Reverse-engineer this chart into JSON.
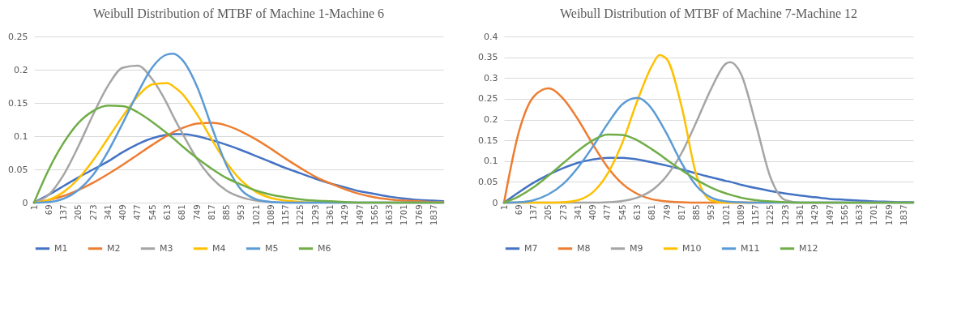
{
  "chart_data": [
    {
      "type": "line",
      "title": "Weibull Distribution of MTBF of Machine 1-Machine 6",
      "x": [
        1,
        69,
        137,
        205,
        273,
        341,
        409,
        477,
        545,
        613,
        640,
        681,
        749,
        817,
        885,
        953,
        1021,
        1089,
        1157,
        1225,
        1293,
        1361,
        1429,
        1497,
        1565,
        1633,
        1701,
        1769,
        1837,
        1880
      ],
      "series": [
        {
          "name": "M1",
          "color": "#4472c4",
          "values": [
            0,
            0.012,
            0.025,
            0.038,
            0.05,
            0.062,
            0.076,
            0.088,
            0.097,
            0.102,
            0.103,
            0.103,
            0.1,
            0.094,
            0.087,
            0.079,
            0.07,
            0.061,
            0.052,
            0.044,
            0.036,
            0.029,
            0.023,
            0.017,
            0.013,
            0.009,
            0.006,
            0.004,
            0.003,
            0.002
          ]
        },
        {
          "name": "M2",
          "color": "#ed7d31",
          "values": [
            0,
            0.004,
            0.01,
            0.019,
            0.03,
            0.043,
            0.057,
            0.072,
            0.087,
            0.101,
            0.106,
            0.112,
            0.119,
            0.12,
            0.116,
            0.107,
            0.095,
            0.081,
            0.066,
            0.052,
            0.039,
            0.029,
            0.02,
            0.013,
            0.008,
            0.005,
            0.003,
            0.002,
            0.001,
            0.001
          ]
        },
        {
          "name": "M3",
          "color": "#a5a5a5",
          "values": [
            0,
            0.012,
            0.042,
            0.085,
            0.133,
            0.176,
            0.203,
            0.206,
            0.185,
            0.148,
            0.13,
            0.105,
            0.066,
            0.037,
            0.018,
            0.008,
            0.003,
            0.001,
            0,
            0,
            0,
            0,
            0,
            0,
            0,
            0,
            0,
            0,
            0,
            0
          ]
        },
        {
          "name": "M4",
          "color": "#ffc000",
          "values": [
            0,
            0.004,
            0.016,
            0.036,
            0.064,
            0.097,
            0.13,
            0.16,
            0.178,
            0.18,
            0.175,
            0.164,
            0.133,
            0.095,
            0.06,
            0.033,
            0.016,
            0.007,
            0.003,
            0.001,
            0,
            null,
            null,
            null,
            null,
            null,
            null,
            null,
            null,
            null
          ]
        },
        {
          "name": "M5",
          "color": "#5b9bd5",
          "values": [
            0,
            0.001,
            0.006,
            0.019,
            0.042,
            0.077,
            0.12,
            0.165,
            0.204,
            0.223,
            0.224,
            0.215,
            0.175,
            0.114,
            0.056,
            0.019,
            0.005,
            0.001,
            0,
            0,
            0,
            0,
            0,
            0,
            0,
            0,
            0,
            0,
            0,
            0
          ]
        },
        {
          "name": "M6",
          "color": "#70ad47",
          "values": [
            0,
            0.05,
            0.09,
            0.12,
            0.138,
            0.146,
            0.145,
            0.136,
            0.121,
            0.104,
            0.097,
            0.085,
            0.067,
            0.051,
            0.037,
            0.027,
            0.018,
            0.012,
            0.008,
            0.005,
            0.003,
            0.002,
            0.001,
            0,
            0,
            0,
            0,
            0,
            0,
            0
          ]
        }
      ],
      "xlim": [
        1,
        1880
      ],
      "xticks": [
        1,
        69,
        137,
        205,
        273,
        341,
        409,
        477,
        545,
        613,
        681,
        749,
        817,
        885,
        953,
        1021,
        1089,
        1157,
        1225,
        1293,
        1361,
        1429,
        1497,
        1565,
        1633,
        1701,
        1769,
        1837
      ],
      "ylim": [
        0,
        0.25
      ],
      "yticks": [
        0,
        0.05,
        0.1,
        0.15,
        0.2,
        0.25
      ],
      "grid": "y",
      "legend": "bottom"
    },
    {
      "type": "line",
      "title": "Weibull Distribution of MTBF of Machine 7-Machine 12",
      "x": [
        1,
        69,
        137,
        205,
        273,
        341,
        409,
        477,
        545,
        613,
        681,
        715,
        749,
        817,
        885,
        953,
        1021,
        1040,
        1089,
        1157,
        1225,
        1293,
        1361,
        1429,
        1497,
        1565,
        1633,
        1701,
        1769,
        1837,
        1880
      ],
      "series": [
        {
          "name": "M7",
          "color": "#4472c4",
          "values": [
            0,
            0.025,
            0.048,
            0.067,
            0.083,
            0.096,
            0.104,
            0.108,
            0.108,
            0.104,
            0.097,
            0.093,
            0.089,
            0.08,
            0.07,
            0.061,
            0.052,
            0.05,
            0.043,
            0.035,
            0.028,
            0.022,
            0.017,
            0.013,
            0.009,
            0.007,
            0.005,
            0.003,
            0.002,
            0.001,
            0.001
          ]
        },
        {
          "name": "M8",
          "color": "#ed7d31",
          "values": [
            0,
            0.17,
            0.255,
            0.275,
            0.25,
            0.2,
            0.14,
            0.085,
            0.045,
            0.021,
            0.008,
            0.005,
            0.003,
            0.001,
            0,
            0,
            0,
            0,
            0,
            0,
            0,
            null,
            null,
            null,
            null,
            null,
            null,
            null,
            null,
            null,
            null
          ]
        },
        {
          "name": "M9",
          "color": "#a5a5a5",
          "values": [
            0,
            0,
            0,
            0,
            0,
            0,
            0,
            0.001,
            0.004,
            0.012,
            0.03,
            0.045,
            0.065,
            0.12,
            0.195,
            0.275,
            0.335,
            0.338,
            0.31,
            0.19,
            0.06,
            0.006,
            0,
            0,
            0,
            0,
            0,
            0,
            0,
            0,
            0
          ]
        },
        {
          "name": "M10",
          "color": "#ffc000",
          "values": [
            0,
            0,
            0,
            0,
            0.001,
            0.006,
            0.025,
            0.07,
            0.145,
            0.245,
            0.33,
            0.355,
            0.345,
            0.23,
            0.065,
            0.005,
            0,
            0,
            0,
            0,
            null,
            null,
            null,
            null,
            null,
            null,
            null,
            null,
            null,
            null,
            null
          ]
        },
        {
          "name": "M11",
          "color": "#5b9bd5",
          "values": [
            0,
            0.001,
            0.006,
            0.02,
            0.045,
            0.085,
            0.135,
            0.19,
            0.237,
            0.252,
            0.225,
            0.197,
            0.165,
            0.095,
            0.04,
            0.012,
            0.003,
            0.002,
            0.001,
            0,
            0,
            0,
            0,
            0,
            0,
            0,
            0,
            0,
            0,
            0,
            0
          ]
        },
        {
          "name": "M12",
          "color": "#70ad47",
          "values": [
            0,
            0.015,
            0.037,
            0.065,
            0.095,
            0.125,
            0.15,
            0.164,
            0.163,
            0.15,
            0.128,
            0.116,
            0.103,
            0.078,
            0.055,
            0.036,
            0.022,
            0.019,
            0.012,
            0.006,
            0.003,
            0.001,
            0,
            0,
            0,
            0,
            0,
            0,
            0,
            0,
            0
          ]
        }
      ],
      "xlim": [
        1,
        1880
      ],
      "xticks": [
        1,
        69,
        137,
        205,
        273,
        341,
        409,
        477,
        545,
        613,
        681,
        749,
        817,
        885,
        953,
        1021,
        1089,
        1157,
        1225,
        1293,
        1361,
        1429,
        1497,
        1565,
        1633,
        1701,
        1769,
        1837
      ],
      "ylim": [
        0,
        0.4
      ],
      "yticks": [
        0,
        0.05,
        0.1,
        0.15,
        0.2,
        0.25,
        0.3,
        0.35,
        0.4
      ],
      "grid": "y",
      "legend": "bottom"
    }
  ]
}
